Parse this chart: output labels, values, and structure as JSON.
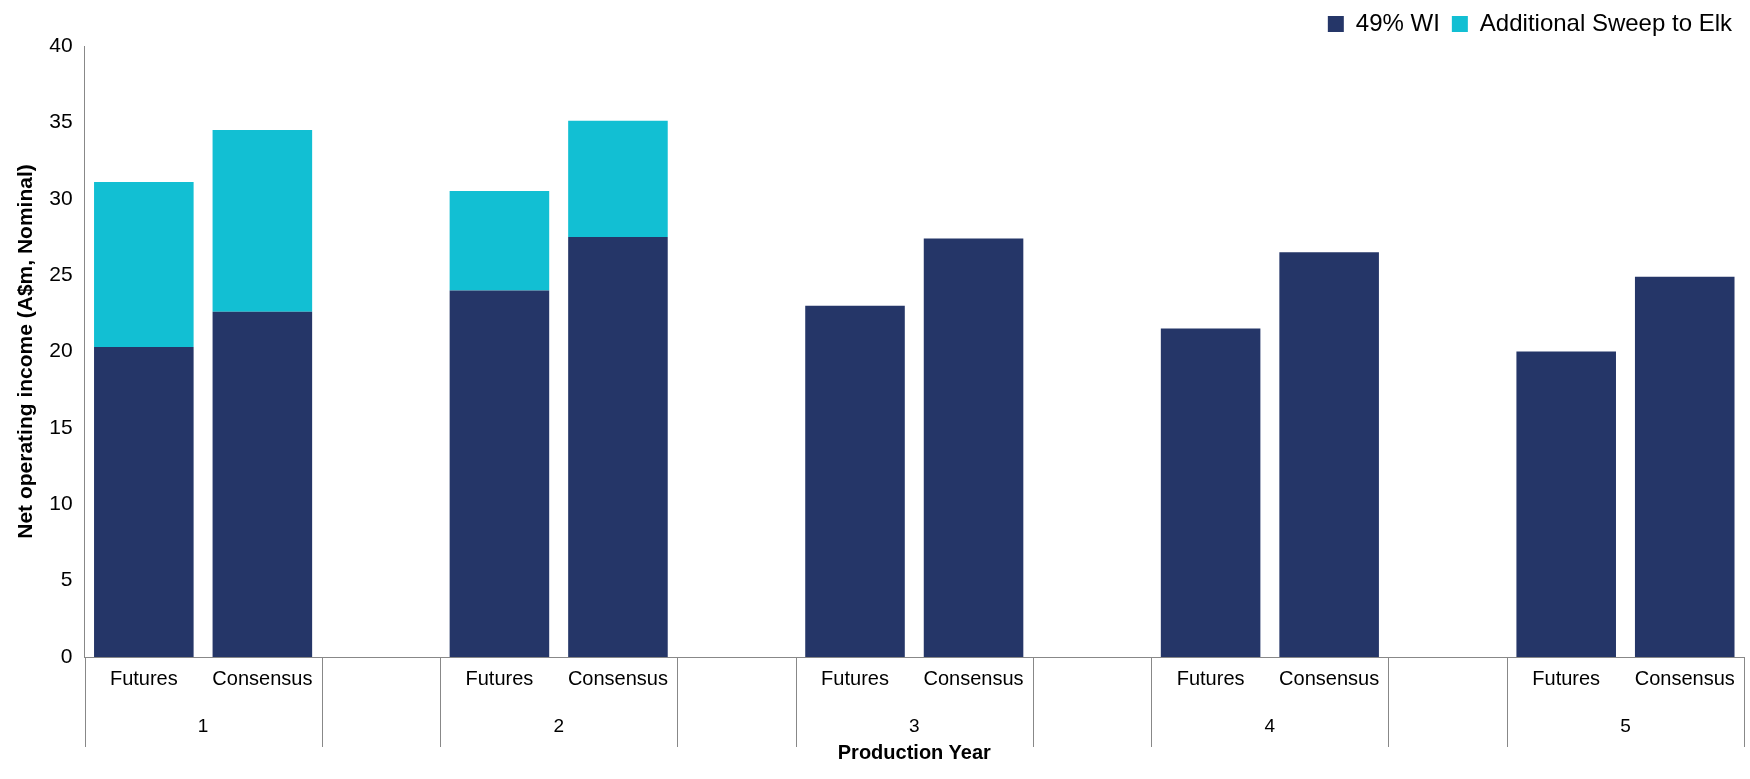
{
  "chart_data": {
    "type": "bar",
    "stacked": true,
    "xlabel": "Production Year",
    "ylabel": "Net operating income (A$m, Nominal)",
    "categories": [
      "Futures",
      "Consensus",
      null,
      "Futures",
      "Consensus",
      null,
      "Futures",
      "Consensus",
      null,
      "Futures",
      "Consensus",
      null,
      "Futures",
      "Consensus"
    ],
    "series": [
      {
        "name": "49% WI",
        "color": "#253668",
        "values": [
          20.3,
          22.6,
          null,
          24.0,
          27.5,
          null,
          23.0,
          27.4,
          null,
          21.5,
          26.5,
          null,
          20.0,
          24.9
        ]
      },
      {
        "name": "Additional Sweep to Elk",
        "color": "#12bfd3",
        "values": [
          10.8,
          11.9,
          null,
          6.5,
          7.6,
          null,
          null,
          null,
          null,
          null,
          null,
          null,
          null,
          null
        ]
      }
    ],
    "annotations": [
      "1",
      "2",
      "3",
      "4",
      "5"
    ],
    "ylim": [
      0,
      40
    ],
    "yticks": [
      0,
      5,
      10,
      15,
      20,
      25,
      30,
      35,
      40
    ],
    "grid": false,
    "legend": "top right"
  }
}
